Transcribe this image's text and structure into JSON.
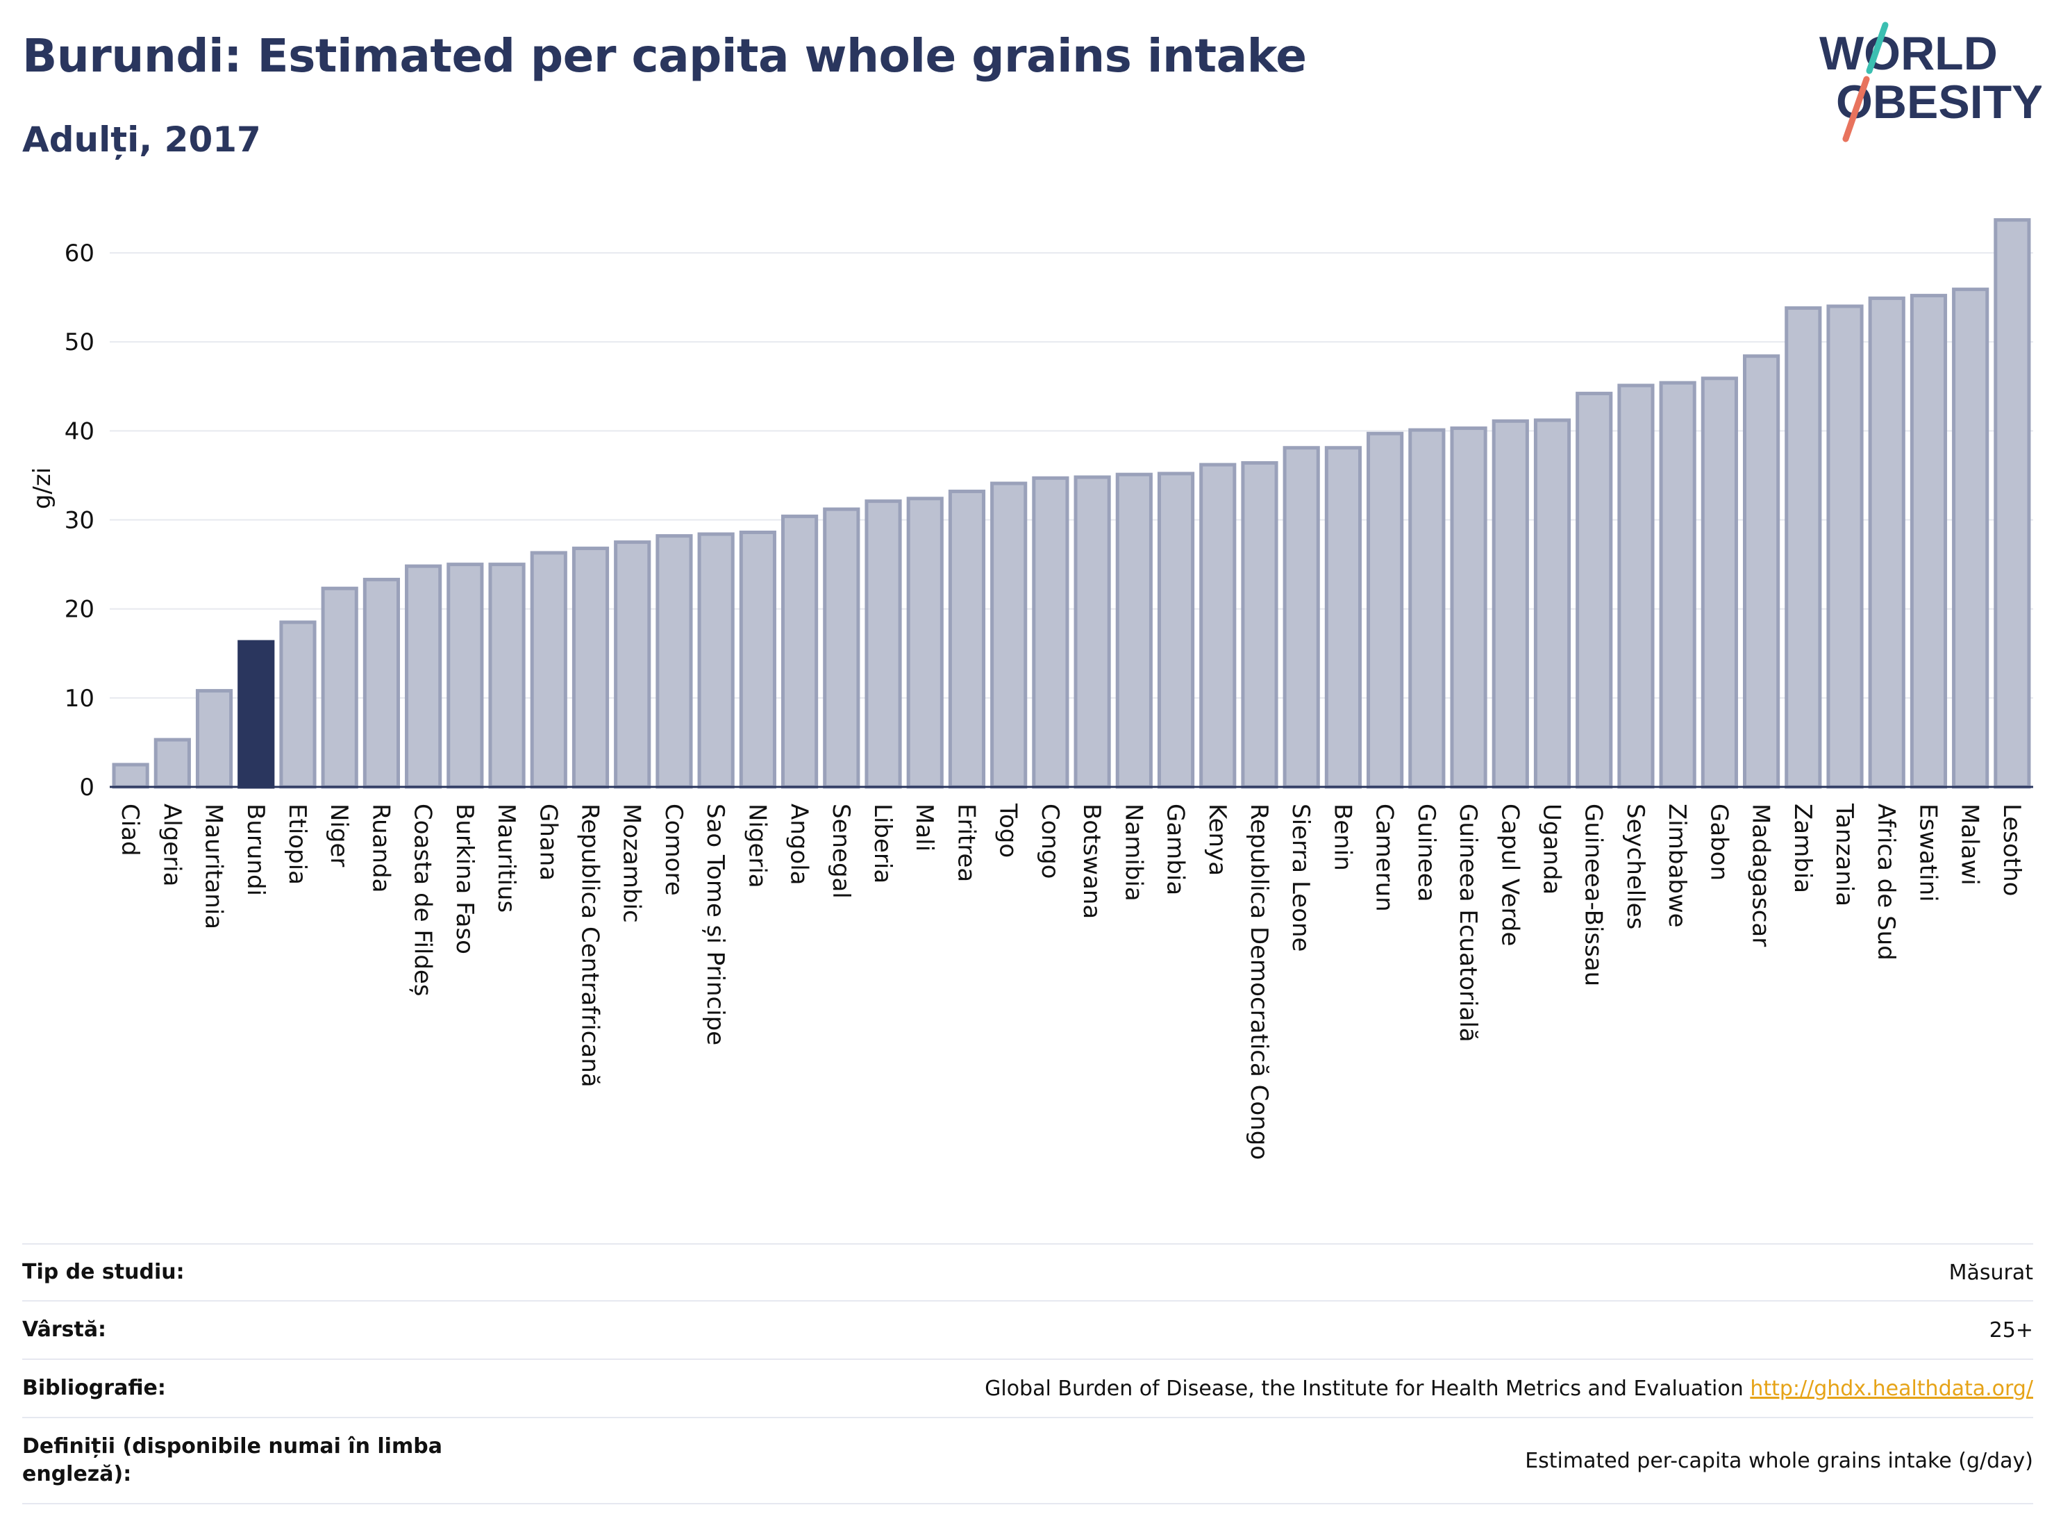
{
  "header": {
    "title": "Burundi: Estimated per capita whole grains intake",
    "subtitle": "Adulți, 2017"
  },
  "logo": {
    "line1": "WORLD",
    "line2": "OBESITY"
  },
  "colors": {
    "bar": "#bcc1d1",
    "bar_stroke": "#9aa1ba",
    "highlight": "#2a365e",
    "text": "#2a365e",
    "grid": "#e7e9ef",
    "link": "#e6a317",
    "logo_teal": "#3bbfb1",
    "logo_coral": "#e8735d"
  },
  "chart_data": {
    "type": "bar",
    "ylabel": "g/zi",
    "xlabel": "",
    "ylim": [
      0,
      65
    ],
    "yticks": [
      0,
      10,
      20,
      30,
      40,
      50,
      60
    ],
    "grid": true,
    "highlight": "Burundi",
    "categories": [
      "Ciad",
      "Algeria",
      "Mauritania",
      "Burundi",
      "Etiopia",
      "Niger",
      "Ruanda",
      "Coasta de Fildeș",
      "Burkina Faso",
      "Mauritius",
      "Ghana",
      "Republica Centrafricană",
      "Mozambic",
      "Comore",
      "Sao Tome și Principe",
      "Nigeria",
      "Angola",
      "Senegal",
      "Liberia",
      "Mali",
      "Eritrea",
      "Togo",
      "Congo",
      "Botswana",
      "Namibia",
      "Gambia",
      "Kenya",
      "Republica Democratică Congo",
      "Sierra Leone",
      "Benin",
      "Camerun",
      "Guineea",
      "Guineea Ecuatorială",
      "Capul Verde",
      "Uganda",
      "Guineea-Bissau",
      "Seychelles",
      "Zimbabwe",
      "Gabon",
      "Madagascar",
      "Zambia",
      "Tanzania",
      "Africa de Sud",
      "Eswatini",
      "Malawi",
      "Lesotho"
    ],
    "values": [
      2.5,
      5.3,
      10.8,
      16.3,
      18.5,
      22.3,
      23.3,
      24.8,
      25.0,
      25.0,
      26.3,
      26.8,
      27.5,
      28.2,
      28.4,
      28.6,
      30.4,
      31.2,
      32.1,
      32.4,
      33.2,
      34.1,
      34.7,
      34.8,
      35.1,
      35.2,
      36.2,
      36.4,
      38.1,
      38.1,
      39.7,
      40.1,
      40.3,
      41.1,
      41.2,
      44.2,
      45.1,
      45.4,
      45.9,
      48.4,
      53.8,
      54.0,
      54.9,
      55.2,
      55.9,
      63.7
    ]
  },
  "info": [
    {
      "key": "Tip de studiu:",
      "value": "Măsurat",
      "link": ""
    },
    {
      "key": "Vârstă:",
      "value": "25+",
      "link": ""
    },
    {
      "key": "Bibliografie:",
      "value": "Global Burden of Disease, the Institute for Health Metrics and Evaluation",
      "link": "http://ghdx.healthdata.org/"
    },
    {
      "key": "Definiții (disponibile numai în limba engleză):",
      "value": "Estimated per-capita whole grains intake (g/day)",
      "link": ""
    }
  ]
}
